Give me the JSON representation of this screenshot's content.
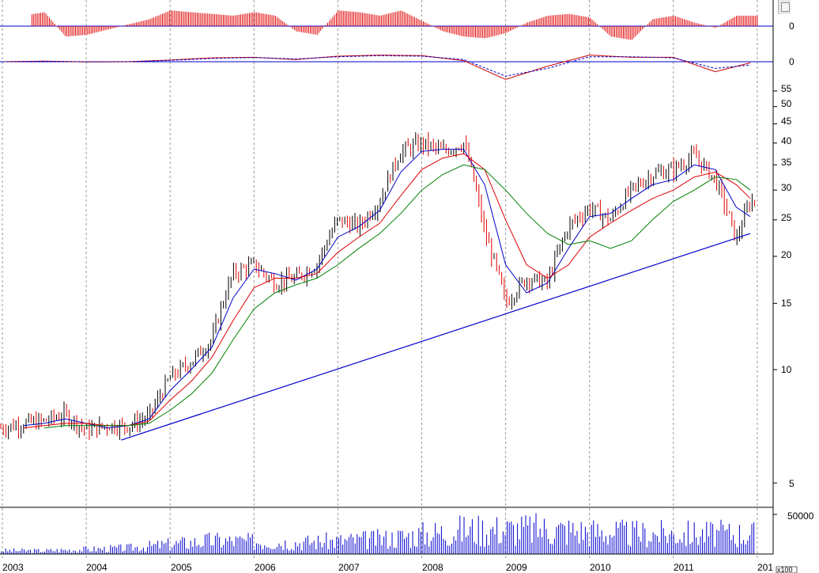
{
  "chart_data": [
    {
      "type": "bar",
      "panel": "top-oscillator-histogram",
      "title": "",
      "zero_label": "0",
      "colors": {
        "bar": "#e00000",
        "zero_line": "#0000cc"
      },
      "x": [
        "2003-01",
        "2003-04",
        "2003-07",
        "2003-10",
        "2004-01",
        "2004-04",
        "2004-07",
        "2004-10",
        "2005-01",
        "2005-04",
        "2005-07",
        "2005-10",
        "2006-01",
        "2006-04",
        "2006-07",
        "2006-10",
        "2007-01",
        "2007-04",
        "2007-07",
        "2007-10",
        "2008-01",
        "2008-04",
        "2008-07",
        "2008-10",
        "2009-01",
        "2009-04",
        "2009-07",
        "2009-10",
        "2010-01",
        "2010-04",
        "2010-07",
        "2010-10",
        "2011-01",
        "2011-04",
        "2011-07",
        "2011-10"
      ],
      "values": [
        0,
        0.6,
        0.8,
        -0.6,
        -0.5,
        -0.2,
        0.1,
        0.4,
        0.9,
        0.8,
        0.7,
        0.6,
        0.8,
        0.6,
        -0.3,
        -0.5,
        0.9,
        0.8,
        0.6,
        0.9,
        0.3,
        -0.3,
        -0.6,
        -0.7,
        -0.4,
        0.2,
        0.6,
        0.7,
        0.5,
        -0.6,
        -0.8,
        0.4,
        0.6,
        0.2,
        -0.1,
        0.6
      ]
    },
    {
      "type": "line",
      "panel": "macd-lines",
      "title": "",
      "zero_label": "0",
      "colors": {
        "macd": "#cc0000",
        "signal": "#0000cc",
        "zero_line": "#0000cc"
      },
      "x": [
        "2003-01",
        "2003-07",
        "2004-01",
        "2004-07",
        "2005-01",
        "2005-07",
        "2006-01",
        "2006-07",
        "2007-01",
        "2007-07",
        "2008-01",
        "2008-07",
        "2009-01",
        "2009-07",
        "2010-01",
        "2010-07",
        "2011-01",
        "2011-07",
        "2011-12"
      ],
      "series": [
        {
          "values": [
            0.0,
            0.05,
            -0.02,
            0.0,
            0.15,
            0.35,
            0.4,
            0.2,
            0.5,
            0.6,
            0.55,
            0.1,
            -1.6,
            -0.4,
            0.6,
            0.4,
            0.4,
            -0.9,
            -0.1
          ]
        },
        {
          "values": [
            0.0,
            0.04,
            0.0,
            0.01,
            0.12,
            0.3,
            0.38,
            0.25,
            0.45,
            0.55,
            0.5,
            0.2,
            -1.3,
            -0.6,
            0.45,
            0.45,
            0.35,
            -0.6,
            -0.3
          ]
        }
      ]
    },
    {
      "type": "line",
      "panel": "price",
      "title": "",
      "yscale": "log",
      "ylim": [
        4.5,
        58
      ],
      "y_ticks": [
        "55",
        "50",
        "45",
        "40",
        "35",
        "30",
        "25",
        "20",
        "15",
        "10",
        "5"
      ],
      "grid": "vertical dashed at year boundaries",
      "colors": {
        "up_bar": "#000000",
        "down_bar": "#e00000",
        "ma_short": "#0000cc",
        "ma_mid": "#e00000",
        "ma_long": "#008000",
        "trendline": "#0000cc"
      },
      "x": [
        "2003-01",
        "2003-04",
        "2003-07",
        "2003-10",
        "2004-01",
        "2004-04",
        "2004-07",
        "2004-10",
        "2005-01",
        "2005-04",
        "2005-07",
        "2005-10",
        "2006-01",
        "2006-04",
        "2006-07",
        "2006-10",
        "2007-01",
        "2007-04",
        "2007-07",
        "2007-10",
        "2008-01",
        "2008-04",
        "2008-07",
        "2008-10",
        "2009-01",
        "2009-04",
        "2009-07",
        "2009-10",
        "2010-01",
        "2010-04",
        "2010-07",
        "2010-10",
        "2011-01",
        "2011-04",
        "2011-07",
        "2011-10",
        "2011-12"
      ],
      "series": [
        {
          "values": [
            7.0,
            7.2,
            7.3,
            7.6,
            6.9,
            7.1,
            7.1,
            7.5,
            9.5,
            10.5,
            12.0,
            18.0,
            19.0,
            17.0,
            17.5,
            19.0,
            25.0,
            24.0,
            28.0,
            38.0,
            40.0,
            38.0,
            40.0,
            23.0,
            15.0,
            17.5,
            17.0,
            24.0,
            27.0,
            25.0,
            30.0,
            33.0,
            34.0,
            37.0,
            32.0,
            22.0,
            28.0
          ]
        },
        {
          "values": [
            7.0,
            7.1,
            7.2,
            7.4,
            7.2,
            7.0,
            7.1,
            7.4,
            8.8,
            10.0,
            11.5,
            15.5,
            18.5,
            18.0,
            17.3,
            18.5,
            22.5,
            24.0,
            26.5,
            33.5,
            38.0,
            38.5,
            38.5,
            31.0,
            19.0,
            16.0,
            17.0,
            21.0,
            25.5,
            26.0,
            28.5,
            31.0,
            32.0,
            35.0,
            34.0,
            27.0,
            25.5
          ]
        },
        {
          "values": [
            7.0,
            7.0,
            7.1,
            7.2,
            7.2,
            7.1,
            7.1,
            7.3,
            8.3,
            9.3,
            10.8,
            13.5,
            16.5,
            17.5,
            17.5,
            18.0,
            20.5,
            22.5,
            24.5,
            29.0,
            34.0,
            36.5,
            37.5,
            34.0,
            25.0,
            19.0,
            17.5,
            19.0,
            22.5,
            24.5,
            26.5,
            28.5,
            30.0,
            32.5,
            33.5,
            31.0,
            28.5
          ]
        },
        {
          "values": [
            7.0,
            7.0,
            7.0,
            7.1,
            7.1,
            7.1,
            7.1,
            7.2,
            7.8,
            8.6,
            9.8,
            12.0,
            14.5,
            16.0,
            16.8,
            17.5,
            19.0,
            21.0,
            23.0,
            26.0,
            30.0,
            33.0,
            35.0,
            34.0,
            30.0,
            26.0,
            23.0,
            21.5,
            22.0,
            21.0,
            22.0,
            25.0,
            28.0,
            30.0,
            32.5,
            32.0,
            30.0
          ]
        }
      ],
      "trendline": {
        "x": [
          "2004-06",
          "2011-12"
        ],
        "y": [
          6.5,
          23.0
        ]
      }
    },
    {
      "type": "bar",
      "panel": "volume",
      "title": "",
      "y_ticks": [
        "50000"
      ],
      "multiplier_label": "x100",
      "colors": {
        "bar": "#0000cc"
      },
      "x": [
        "2003",
        "2004",
        "2005",
        "2006",
        "2007",
        "2008",
        "2009",
        "2010",
        "2011"
      ],
      "values": [
        5000,
        9000,
        20000,
        17000,
        22000,
        36000,
        37000,
        30000,
        30000
      ]
    }
  ],
  "x_axis": {
    "labels": [
      "2003",
      "2004",
      "2005",
      "2006",
      "2007",
      "2008",
      "2009",
      "2010",
      "2011",
      "201"
    ]
  }
}
